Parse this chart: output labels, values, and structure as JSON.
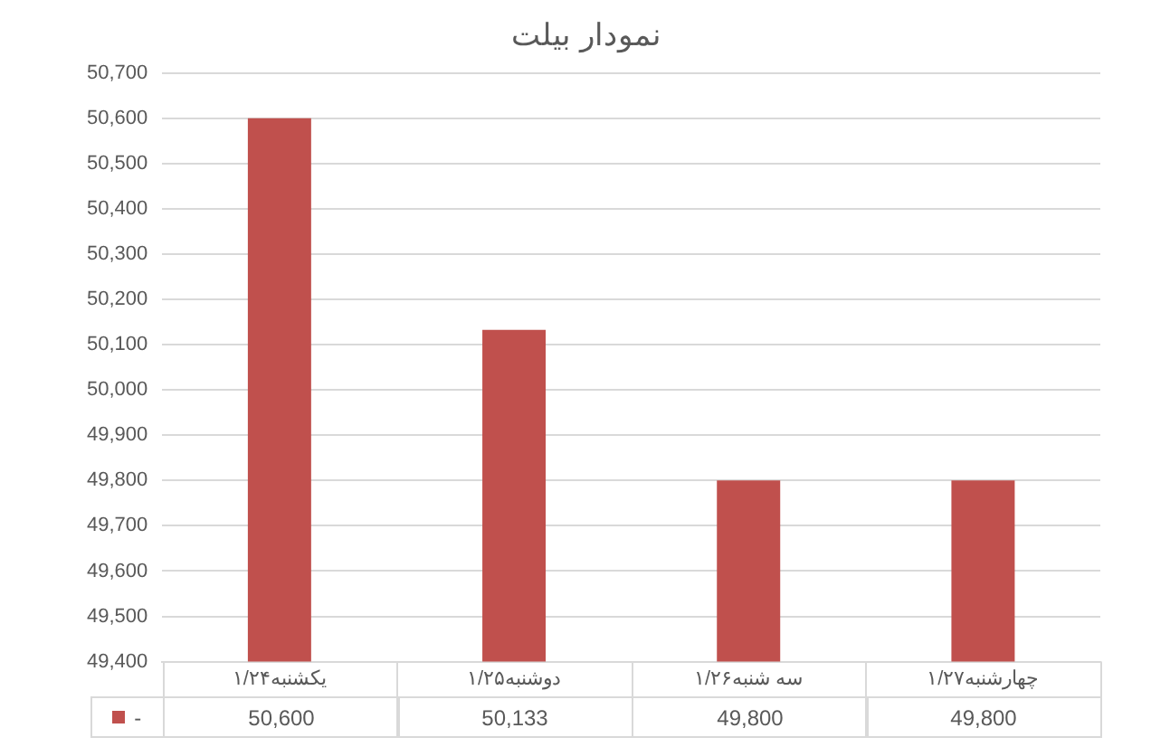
{
  "chart_data": {
    "type": "bar",
    "title": "نمودار بیلت",
    "categories": [
      "یکشنبه۱/۲۴",
      "دوشنبه۱/۲۵",
      "سه شنبه۱/۲۶",
      "چهارشنبه۱/۲۷"
    ],
    "series": [
      {
        "name": "-",
        "color": "#c0504d",
        "values": [
          50600,
          50133,
          49800,
          49800
        ],
        "value_labels": [
          "50,600",
          "50,133",
          "49,800",
          "49,800"
        ]
      }
    ],
    "ylim": [
      49400,
      50700
    ],
    "yticks": [
      {
        "value": 49400,
        "label": "49,400"
      },
      {
        "value": 49500,
        "label": "49,500"
      },
      {
        "value": 49600,
        "label": "49,600"
      },
      {
        "value": 49700,
        "label": "49,700"
      },
      {
        "value": 49800,
        "label": "49,800"
      },
      {
        "value": 49900,
        "label": "49,900"
      },
      {
        "value": 50000,
        "label": "50,000"
      },
      {
        "value": 50100,
        "label": "50,100"
      },
      {
        "value": 50200,
        "label": "50,200"
      },
      {
        "value": 50300,
        "label": "50,300"
      },
      {
        "value": 50400,
        "label": "50,400"
      },
      {
        "value": 50500,
        "label": "50,500"
      },
      {
        "value": 50600,
        "label": "50,600"
      },
      {
        "value": 50700,
        "label": "50,700"
      }
    ],
    "grid": "y",
    "legend": "bottom"
  }
}
